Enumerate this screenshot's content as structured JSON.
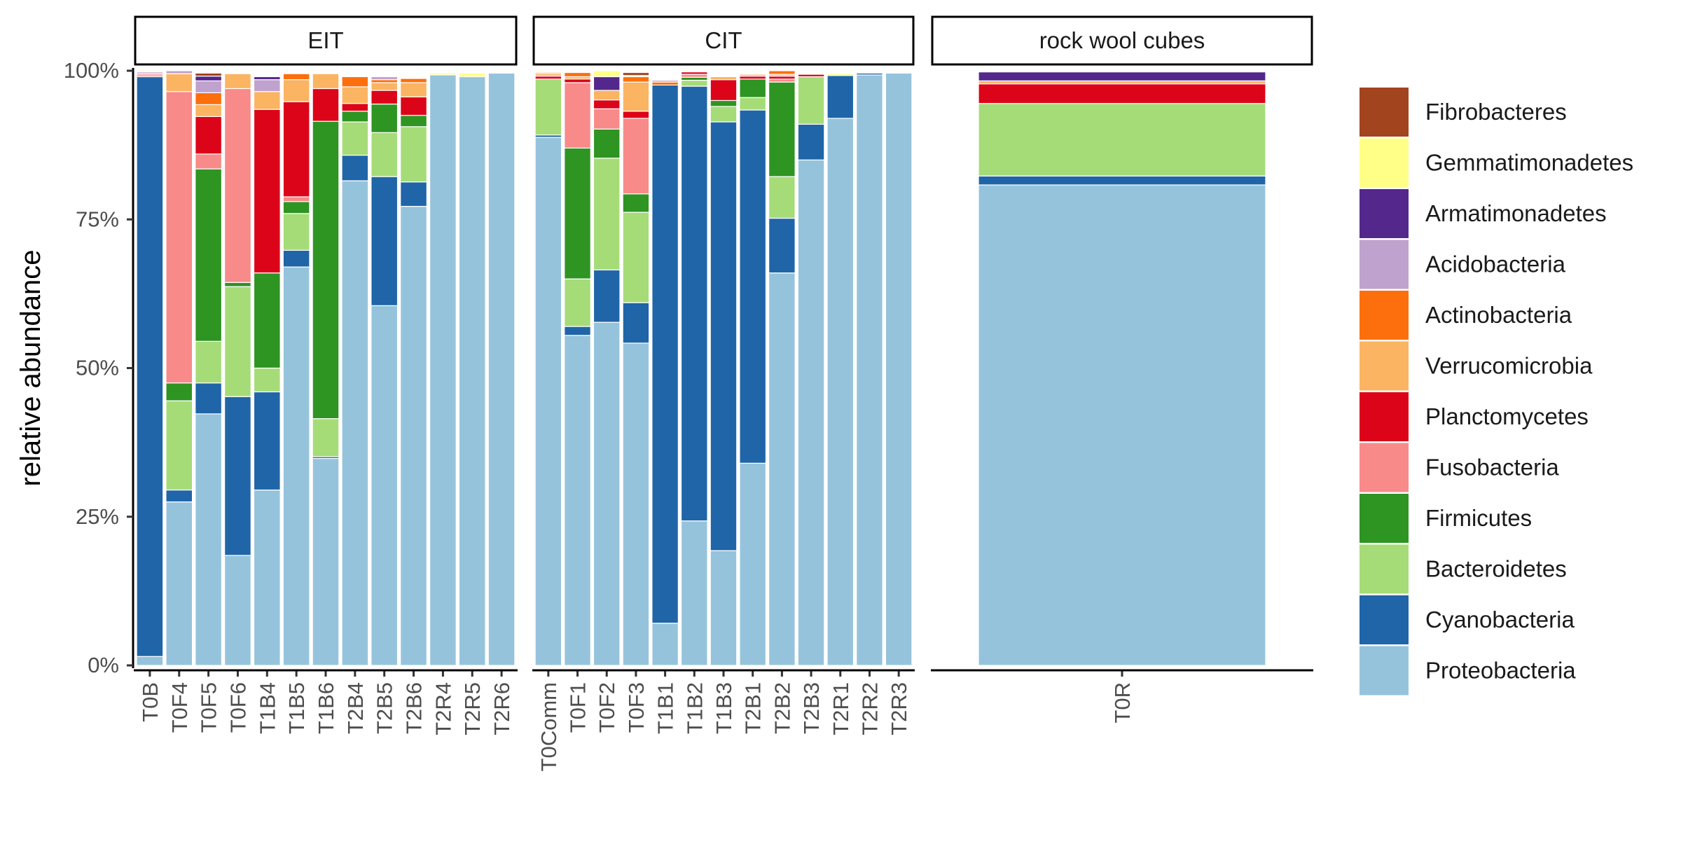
{
  "chart_data": {
    "type": "bar",
    "stacked": true,
    "ylabel": "relative abundance",
    "ylim": [
      0,
      100
    ],
    "yticks": [
      0,
      25,
      50,
      75,
      100
    ],
    "ytick_labels": [
      "0%",
      "25%",
      "50%",
      "75%",
      "100%"
    ],
    "legend_placement": "right",
    "series": [
      {
        "name": "Proteobacteria",
        "color": "#96c3dc"
      },
      {
        "name": "Cyanobacteria",
        "color": "#1f65a8"
      },
      {
        "name": "Bacteroidetes",
        "color": "#a6dc78"
      },
      {
        "name": "Firmicutes",
        "color": "#2e9422"
      },
      {
        "name": "Fusobacteria",
        "color": "#f88a89"
      },
      {
        "name": "Planctomycetes",
        "color": "#dc0419"
      },
      {
        "name": "Verrucomicrobia",
        "color": "#fbb462"
      },
      {
        "name": "Actinobacteria",
        "color": "#fd6f0c"
      },
      {
        "name": "Acidobacteria",
        "color": "#c0a2ce"
      },
      {
        "name": "Armatimonadetes",
        "color": "#54278c"
      },
      {
        "name": "Gemmatimonadetes",
        "color": "#ffff88"
      },
      {
        "name": "Fibrobacteres",
        "color": "#a2441d"
      }
    ],
    "panels": [
      {
        "title": "EIT",
        "samples": [
          {
            "label": "T0B",
            "values": [
              1.5,
              97.5,
              0,
              0,
              0.3,
              0.2,
              0,
              0,
              0.3,
              0,
              0.2,
              0
            ]
          },
          {
            "label": "T0F4",
            "values": [
              27.5,
              2,
              15,
              3,
              49,
              0,
              3,
              0,
              0.5,
              0,
              0,
              0
            ]
          },
          {
            "label": "T0F5",
            "values": [
              42.3,
              5.2,
              7,
              29,
              2.5,
              6.3,
              2,
              2,
              2,
              0.8,
              0,
              0.5
            ]
          },
          {
            "label": "T0F6",
            "values": [
              18.5,
              26.7,
              18.5,
              0.7,
              32.6,
              0,
              2.5,
              0,
              0,
              0,
              0,
              0
            ]
          },
          {
            "label": "T1B4",
            "values": [
              29.5,
              16.5,
              4,
              16,
              0,
              27.5,
              3,
              0,
              2,
              0.5,
              0,
              0
            ]
          },
          {
            "label": "T1B5",
            "values": [
              67,
              2.8,
              6.2,
              2,
              0.8,
              16,
              3.7,
              1,
              0,
              0,
              0,
              0
            ]
          },
          {
            "label": "T1B6",
            "values": [
              34.8,
              0.3,
              6.4,
              50,
              0,
              5.5,
              2.5,
              0,
              0,
              0,
              0,
              0
            ]
          },
          {
            "label": "T2B4",
            "values": [
              81.5,
              4.3,
              5.6,
              1.8,
              0,
              1.3,
              2.8,
              1.7,
              0,
              0,
              0,
              0
            ]
          },
          {
            "label": "T2B5",
            "values": [
              60.5,
              21.7,
              7.4,
              4.8,
              0,
              2.3,
              1.3,
              0.5,
              0.5,
              0,
              0,
              0
            ]
          },
          {
            "label": "T2B6",
            "values": [
              77.2,
              4.1,
              9.3,
              1.9,
              0,
              3.1,
              2.4,
              0.7,
              0,
              0,
              0,
              0
            ]
          },
          {
            "label": "T2R4",
            "values": [
              99.3,
              0,
              0,
              0,
              0,
              0,
              0,
              0,
              0,
              0,
              0.3,
              0
            ]
          },
          {
            "label": "T2R5",
            "values": [
              99,
              0,
              0,
              0,
              0,
              0,
              0,
              0,
              0,
              0,
              0.6,
              0
            ]
          },
          {
            "label": "T2R6",
            "values": [
              99.6,
              0,
              0,
              0,
              0,
              0,
              0,
              0,
              0,
              0,
              0,
              0
            ]
          }
        ]
      },
      {
        "title": "CIT",
        "samples": [
          {
            "label": "T0Comm",
            "values": [
              88.8,
              0.4,
              9.4,
              0,
              0,
              0.5,
              0.4,
              0.2,
              0,
              0,
              0,
              0
            ]
          },
          {
            "label": "T0F1",
            "values": [
              55.5,
              1.5,
              8,
              22,
              11,
              0.6,
              0.4,
              0.7,
              0,
              0,
              0,
              0
            ]
          },
          {
            "label": "T0F2",
            "values": [
              57.7,
              8.8,
              18.8,
              4.9,
              3.4,
              1.5,
              1.6,
              0,
              0,
              2.3,
              1.0,
              0
            ]
          },
          {
            "label": "T0F3",
            "values": [
              54.2,
              6.8,
              15.2,
              3.1,
              12.7,
              1.2,
              4.9,
              0.9,
              0,
              0,
              0.2,
              0.5
            ]
          },
          {
            "label": "T1B1",
            "values": [
              7.1,
              90.5,
              0,
              0,
              0,
              0,
              0,
              0.5,
              0.3,
              0,
              0,
              0
            ]
          },
          {
            "label": "T1B2",
            "values": [
              24.3,
              73.1,
              1.0,
              0.5,
              0.5,
              0.4,
              0,
              0,
              0,
              0,
              0,
              0
            ]
          },
          {
            "label": "T1B3",
            "values": [
              19.3,
              72.1,
              2.6,
              1.0,
              0,
              3.5,
              0.5,
              0,
              0,
              0,
              0,
              0
            ]
          },
          {
            "label": "T2B1",
            "values": [
              34,
              59.4,
              2.1,
              3.1,
              0,
              0.5,
              0.3,
              0,
              0,
              0,
              0,
              0
            ]
          },
          {
            "label": "T2B2",
            "values": [
              66,
              9.2,
              7,
              15.9,
              0.5,
              0.5,
              0.3,
              0.6,
              0,
              0,
              0,
              0
            ]
          },
          {
            "label": "T2B3",
            "values": [
              85,
              6,
              8,
              0,
              0,
              0.4,
              0,
              0,
              0,
              0,
              0,
              0
            ]
          },
          {
            "label": "T2R1",
            "values": [
              92,
              7.2,
              0,
              0,
              0,
              0,
              0,
              0,
              0,
              0,
              0.3,
              0
            ]
          },
          {
            "label": "T2R2",
            "values": [
              99.3,
              0.3,
              0,
              0,
              0,
              0,
              0,
              0,
              0,
              0,
              0,
              0
            ]
          },
          {
            "label": "T2R3",
            "values": [
              99.6,
              0,
              0,
              0,
              0,
              0,
              0,
              0,
              0,
              0,
              0,
              0
            ]
          }
        ]
      },
      {
        "title": "rock wool cubes",
        "samples": [
          {
            "label": "T0R",
            "values": [
              80.8,
              1.5,
              12.2,
              0,
              0,
              3.3,
              0.5,
              0,
              0,
              1.5,
              0,
              0
            ]
          }
        ]
      }
    ]
  }
}
